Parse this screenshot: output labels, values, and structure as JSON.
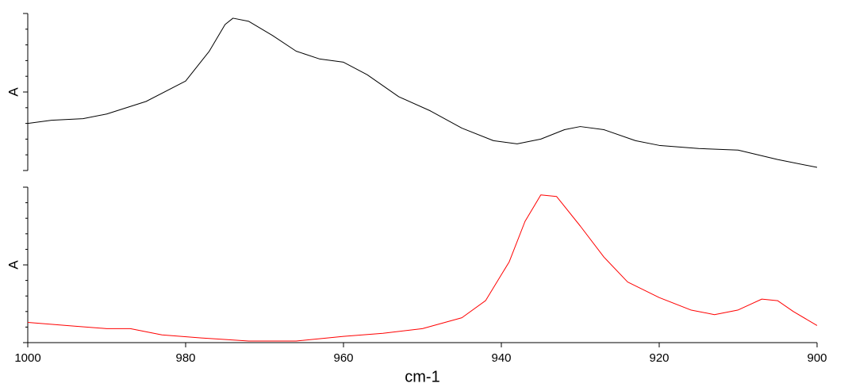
{
  "chart_data": [
    {
      "type": "line",
      "ylabel": "A",
      "xlim": [
        1000,
        900
      ],
      "ylim": [
        0,
        1
      ],
      "x": [
        1000,
        997,
        993,
        990,
        985,
        980,
        977,
        975,
        974,
        972,
        969,
        966,
        963,
        960,
        957,
        953,
        949,
        945,
        941,
        938,
        935,
        932,
        930,
        927,
        923,
        920,
        915,
        910,
        905,
        900
      ],
      "series": [
        {
          "color": "#000000",
          "values": [
            0.3,
            0.32,
            0.33,
            0.36,
            0.44,
            0.57,
            0.76,
            0.93,
            0.97,
            0.95,
            0.86,
            0.76,
            0.71,
            0.69,
            0.61,
            0.47,
            0.38,
            0.27,
            0.19,
            0.17,
            0.2,
            0.26,
            0.28,
            0.26,
            0.19,
            0.16,
            0.14,
            0.13,
            0.07,
            0.02
          ]
        }
      ]
    },
    {
      "type": "line",
      "ylabel": "A",
      "xlabel": "cm-1",
      "xlim": [
        1000,
        900
      ],
      "ylim": [
        0,
        1
      ],
      "xticks": [
        1000,
        980,
        960,
        940,
        920,
        900
      ],
      "x": [
        1000,
        995,
        990,
        987,
        983,
        978,
        972,
        966,
        960,
        955,
        950,
        945,
        942,
        939,
        937,
        935,
        933,
        930,
        927,
        924,
        920,
        916,
        913,
        910,
        907,
        905,
        903,
        900
      ],
      "series": [
        {
          "color": "#ff0000",
          "values": [
            0.13,
            0.11,
            0.09,
            0.09,
            0.05,
            0.03,
            0.01,
            0.01,
            0.04,
            0.06,
            0.09,
            0.16,
            0.27,
            0.52,
            0.78,
            0.95,
            0.94,
            0.75,
            0.55,
            0.39,
            0.29,
            0.21,
            0.18,
            0.21,
            0.28,
            0.27,
            0.2,
            0.11
          ]
        }
      ]
    }
  ]
}
